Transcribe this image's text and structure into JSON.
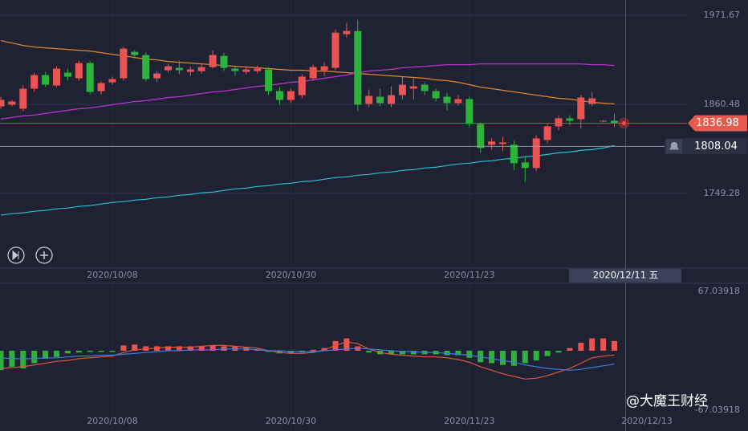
{
  "chart_data": [
    {
      "type": "candlestick",
      "categories": [
        null,
        null,
        null,
        null,
        null,
        null,
        null,
        null,
        null,
        null,
        "2020/10/08",
        null,
        null,
        null,
        null,
        null,
        null,
        null,
        null,
        null,
        null,
        null,
        null,
        null,
        null,
        null,
        "2020/10/30",
        null,
        null,
        null,
        null,
        null,
        null,
        null,
        null,
        null,
        null,
        null,
        null,
        null,
        null,
        null,
        "2020/11/23",
        null,
        null,
        null,
        null,
        null,
        null,
        null,
        null,
        null,
        null,
        null,
        null,
        null
      ],
      "open": [
        1858,
        1860,
        1855,
        1880,
        1897,
        1884,
        1900,
        1893,
        1912,
        1877,
        1888,
        1893,
        1926,
        1922,
        1893,
        1903,
        1906,
        1901,
        1902,
        1907,
        1921,
        1905,
        1901,
        1902,
        1904,
        1877,
        1866,
        1872,
        1893,
        1903,
        1906,
        1948,
        1952,
        1861,
        1870,
        1861,
        1872,
        1880,
        1885,
        1877,
        1870,
        1862,
        1867,
        1836,
        1810,
        1811,
        1810,
        1788,
        1781,
        1816,
        1833,
        1843,
        1842,
        1861,
        1840,
        1840
      ],
      "high": [
        1870,
        1866,
        1885,
        1900,
        1901,
        1908,
        1905,
        1915,
        1914,
        1889,
        1895,
        1932,
        1928,
        1925,
        1902,
        1911,
        1915,
        1908,
        1911,
        1928,
        1925,
        1908,
        1907,
        1909,
        1907,
        1882,
        1880,
        1898,
        1910,
        1913,
        1954,
        1962,
        1966,
        1879,
        1880,
        1883,
        1895,
        1893,
        1888,
        1880,
        1875,
        1872,
        1870,
        1838,
        1818,
        1820,
        1815,
        1795,
        1822,
        1836,
        1847,
        1847,
        1872,
        1876,
        1841,
        1849
      ],
      "low": [
        1855,
        1858,
        1852,
        1876,
        1882,
        1882,
        1890,
        1890,
        1873,
        1873,
        1885,
        1890,
        1918,
        1889,
        1888,
        1900,
        1898,
        1896,
        1899,
        1905,
        1902,
        1896,
        1898,
        1899,
        1872,
        1860,
        1862,
        1868,
        1890,
        1896,
        1903,
        1944,
        1852,
        1857,
        1858,
        1857,
        1867,
        1866,
        1872,
        1864,
        1853,
        1859,
        1832,
        1800,
        1804,
        1802,
        1778,
        1764,
        1777,
        1812,
        1828,
        1834,
        1830,
        1858,
        1838,
        1832
      ],
      "close": [
        1866,
        1864,
        1880,
        1897,
        1885,
        1905,
        1895,
        1912,
        1876,
        1887,
        1892,
        1930,
        1922,
        1892,
        1899,
        1908,
        1903,
        1904,
        1907,
        1922,
        1906,
        1902,
        1904,
        1905,
        1877,
        1866,
        1877,
        1895,
        1907,
        1908,
        1950,
        1952,
        1860,
        1871,
        1862,
        1872,
        1885,
        1883,
        1877,
        1868,
        1862,
        1867,
        1836,
        1806,
        1814,
        1813,
        1787,
        1781,
        1818,
        1833,
        1843,
        1840,
        1869,
        1868,
        1840,
        1836.98
      ],
      "up_color": "#eb5454",
      "down_color": "#2db33c",
      "overlays": [
        {
          "color": "#e0872f",
          "values": [
            1940,
            1937,
            1934,
            1932,
            1931,
            1930,
            1929,
            1928,
            1927,
            1925,
            1923,
            1921,
            1919,
            1917,
            1916,
            1914,
            1913,
            1912,
            1911,
            1910,
            1909,
            1908,
            1907,
            1906,
            1905,
            1904,
            1903,
            1903,
            1902,
            1902,
            1901,
            1900,
            1899,
            1898,
            1897,
            1896,
            1895,
            1894,
            1893,
            1891,
            1890,
            1888,
            1885,
            1882,
            1880,
            1878,
            1876,
            1874,
            1872,
            1870,
            1868,
            1867,
            1865,
            1863,
            1862,
            1861
          ]
        },
        {
          "color": "#c030d8",
          "values": [
            1842,
            1844,
            1846,
            1847,
            1849,
            1851,
            1853,
            1855,
            1856,
            1858,
            1860,
            1862,
            1864,
            1865,
            1867,
            1869,
            1870,
            1872,
            1874,
            1876,
            1877,
            1879,
            1881,
            1883,
            1884,
            1886,
            1888,
            1889,
            1891,
            1893,
            1895,
            1897,
            1900,
            1902,
            1903,
            1904,
            1906,
            1907,
            1908,
            1909,
            1910,
            1910,
            1910,
            1911,
            1911,
            1911,
            1911,
            1911,
            1911,
            1911,
            1911,
            1911,
            1911,
            1910,
            1910,
            1909
          ]
        },
        {
          "color": "#27c3d6",
          "values": [
            1722,
            1724,
            1725,
            1727,
            1728,
            1730,
            1731,
            1733,
            1734,
            1736,
            1738,
            1739,
            1741,
            1742,
            1744,
            1745,
            1747,
            1748,
            1750,
            1751,
            1753,
            1755,
            1756,
            1758,
            1759,
            1761,
            1762,
            1764,
            1765,
            1767,
            1769,
            1770,
            1772,
            1773,
            1775,
            1776,
            1778,
            1779,
            1781,
            1782,
            1784,
            1786,
            1787,
            1789,
            1790,
            1792,
            1793,
            1795,
            1796,
            1798,
            1800,
            1801,
            1803,
            1804,
            1806,
            1809
          ]
        }
      ],
      "ylim": [
        1656.1,
        1990.7
      ],
      "yticks": [
        1971.67,
        1860.48,
        1749.28
      ],
      "last_price": 1836.98,
      "alert_price": 1808.04,
      "crosshair_label": "2020/12/11 五"
    },
    {
      "type": "macd",
      "values": [
        -22,
        -18,
        -20,
        -14,
        -9,
        -7,
        -3,
        -2,
        -1,
        -1,
        -1,
        6,
        7,
        5,
        5,
        5,
        5,
        5,
        5,
        6,
        5,
        5,
        4,
        2,
        -1,
        -3,
        -3,
        -2,
        1,
        3,
        11,
        14,
        5,
        -2,
        -4,
        -4,
        -4,
        -4,
        -4,
        -4,
        -5,
        -5,
        -8,
        -13,
        -14,
        -16,
        -17,
        -14,
        -11,
        -6,
        -2,
        3,
        9,
        14,
        14,
        11
      ],
      "lines": [
        {
          "color": "#e0553e",
          "values": [
            -20,
            -19,
            -18,
            -16,
            -14,
            -12,
            -11,
            -9,
            -8,
            -7,
            -6,
            -2,
            1,
            2,
            3,
            4,
            4,
            4,
            5,
            6,
            6,
            5,
            4,
            3,
            0,
            -2,
            -3,
            -3,
            -2,
            1,
            6,
            10,
            8,
            2,
            -2,
            -4,
            -5,
            -6,
            -7,
            -7,
            -8,
            -10,
            -13,
            -18,
            -22,
            -26,
            -29,
            -32,
            -31,
            -28,
            -24,
            -20,
            -14,
            -8,
            -6,
            -5
          ]
        },
        {
          "color": "#3d7be0",
          "values": [
            -8,
            -9,
            -9,
            -9,
            -8,
            -8,
            -7,
            -6,
            -6,
            -5,
            -5,
            -4,
            -3,
            -2,
            -1,
            0,
            0,
            1,
            1,
            1,
            2,
            2,
            2,
            1,
            0,
            0,
            -1,
            -1,
            -1,
            0,
            1,
            2,
            3,
            2,
            1,
            0,
            -1,
            -1,
            -2,
            -2,
            -3,
            -4,
            -5,
            -7,
            -9,
            -11,
            -13,
            -16,
            -18,
            -20,
            -21,
            -22,
            -21,
            -19,
            -17,
            -15
          ]
        }
      ],
      "ylim": [
        -90.6,
        76.1
      ],
      "yticks": [
        67.03918,
        -67.03918
      ],
      "end_label": "2020/12/13"
    }
  ],
  "watermark": "@大魔王财经"
}
